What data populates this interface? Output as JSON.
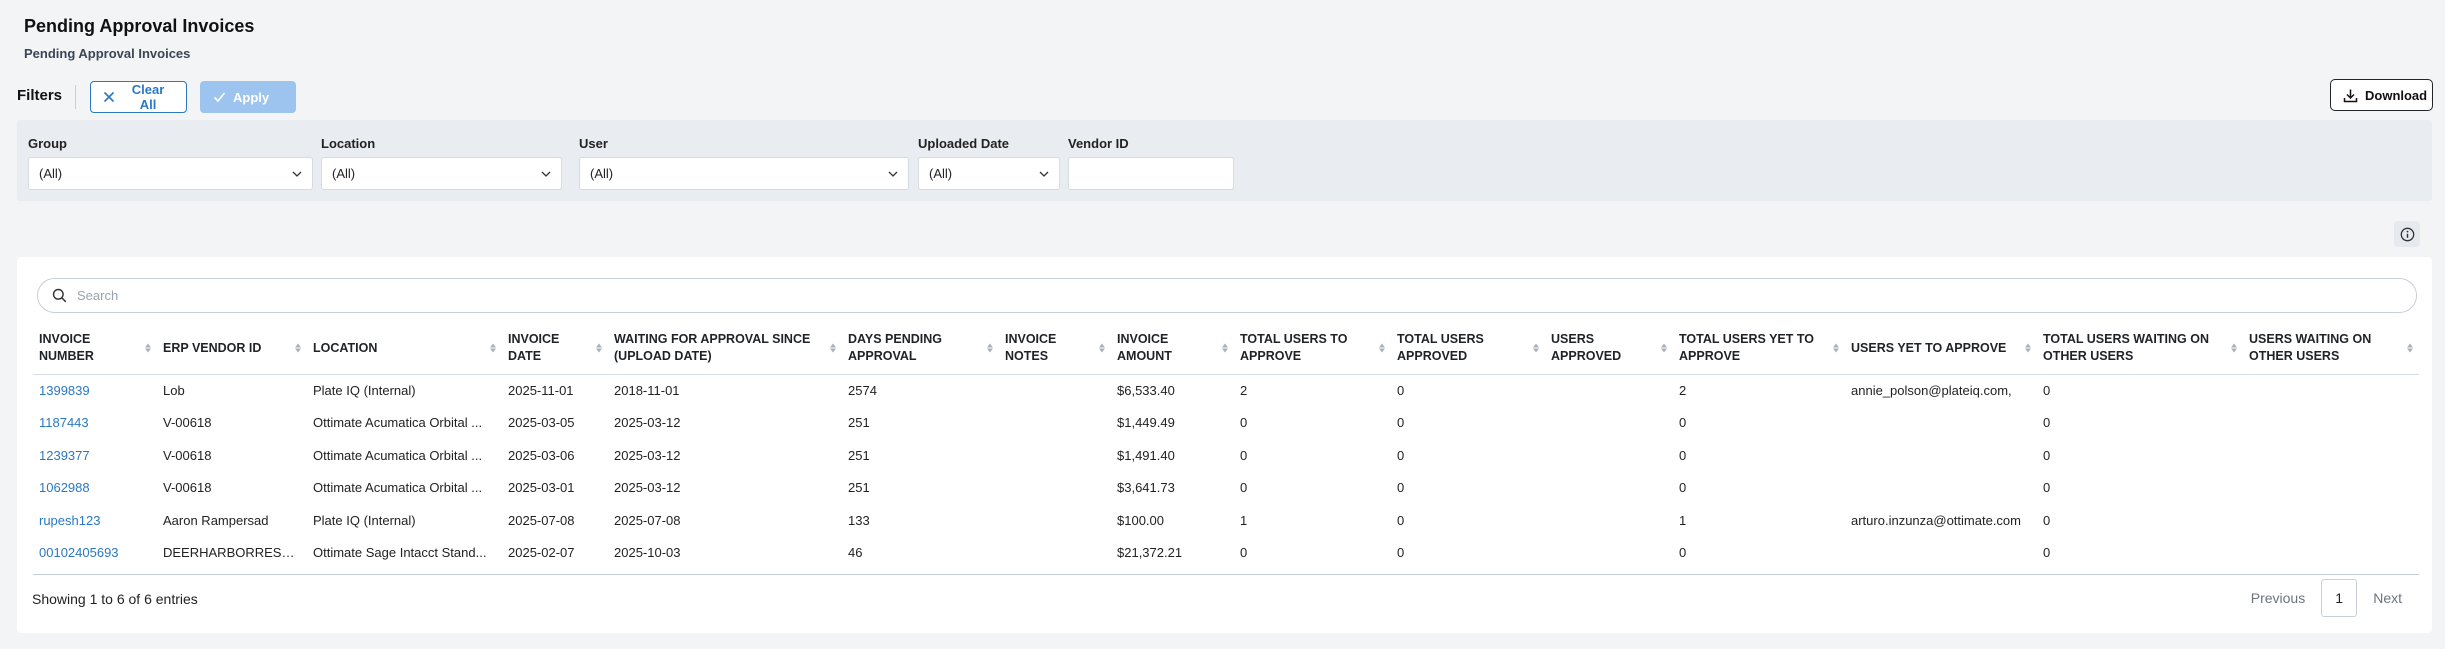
{
  "page": {
    "title": "Pending Approval Invoices",
    "subtitle": "Pending Approval Invoices"
  },
  "toolbar": {
    "filters_label": "Filters",
    "clear_all_label": "Clear All",
    "apply_label": "Apply",
    "download_label": "Download"
  },
  "filters": [
    {
      "label": "Group",
      "value": "(All)"
    },
    {
      "label": "Location",
      "value": "(All)"
    },
    {
      "label": "User",
      "value": "(All)"
    },
    {
      "label": "Uploaded Date",
      "value": "(All)"
    },
    {
      "label": "Vendor ID",
      "value": ""
    }
  ],
  "search": {
    "placeholder": "Search"
  },
  "table": {
    "columns": [
      "Invoice Number",
      "ERP Vendor ID",
      "Location",
      "Invoice Date",
      "Waiting for approval since (upload date)",
      "Days Pending Approval",
      "Invoice Notes",
      "Invoice Amount",
      "Total Users to Approve",
      "Total Users Approved",
      "Users Approved",
      "Total Users Yet to Approve",
      "Users Yet to Approve",
      "Total Users Waiting on Other Users",
      "Users Waiting on Other Users"
    ],
    "rows": [
      [
        "1399839",
        "Lob",
        "Plate IQ (Internal)",
        "2025-11-01",
        "2018-11-01",
        "2574",
        "",
        "$6,533.40",
        "2",
        "0",
        "",
        "2",
        "annie_polson@plateiq.com,",
        "0",
        ""
      ],
      [
        "1187443",
        "V-00618",
        "Ottimate Acumatica Orbital ...",
        "2025-03-05",
        "2025-03-12",
        "251",
        "",
        "$1,449.49",
        "0",
        "0",
        "",
        "0",
        "",
        "0",
        ""
      ],
      [
        "1239377",
        "V-00618",
        "Ottimate Acumatica Orbital ...",
        "2025-03-06",
        "2025-03-12",
        "251",
        "",
        "$1,491.40",
        "0",
        "0",
        "",
        "0",
        "",
        "0",
        ""
      ],
      [
        "1062988",
        "V-00618",
        "Ottimate Acumatica Orbital ...",
        "2025-03-01",
        "2025-03-12",
        "251",
        "",
        "$3,641.73",
        "0",
        "0",
        "",
        "0",
        "",
        "0",
        ""
      ],
      [
        "rupesh123",
        "Aaron Rampersad",
        "Plate IQ (Internal)",
        "2025-07-08",
        "2025-07-08",
        "133",
        "",
        "$100.00",
        "1",
        "0",
        "",
        "1",
        "arturo.inzunza@ottimate.com",
        "0",
        ""
      ],
      [
        "00102405693",
        "DEERHARBORRESORT",
        "Ottimate Sage Intacct Stand...",
        "2025-02-07",
        "2025-10-03",
        "46",
        "",
        "$21,372.21",
        "0",
        "0",
        "",
        "0",
        "",
        "0",
        ""
      ]
    ]
  },
  "footer": {
    "showing": "Showing 1 to 6 of 6 entries"
  },
  "pagination": {
    "previous_label": "Previous",
    "current_page": "1",
    "next_label": "Next"
  },
  "colors": {
    "accent": "#2b78c2",
    "apply_disabled": "#9cc4ee",
    "panel_bg": "#e9edf1",
    "page_bg": "#f2f4f6"
  }
}
